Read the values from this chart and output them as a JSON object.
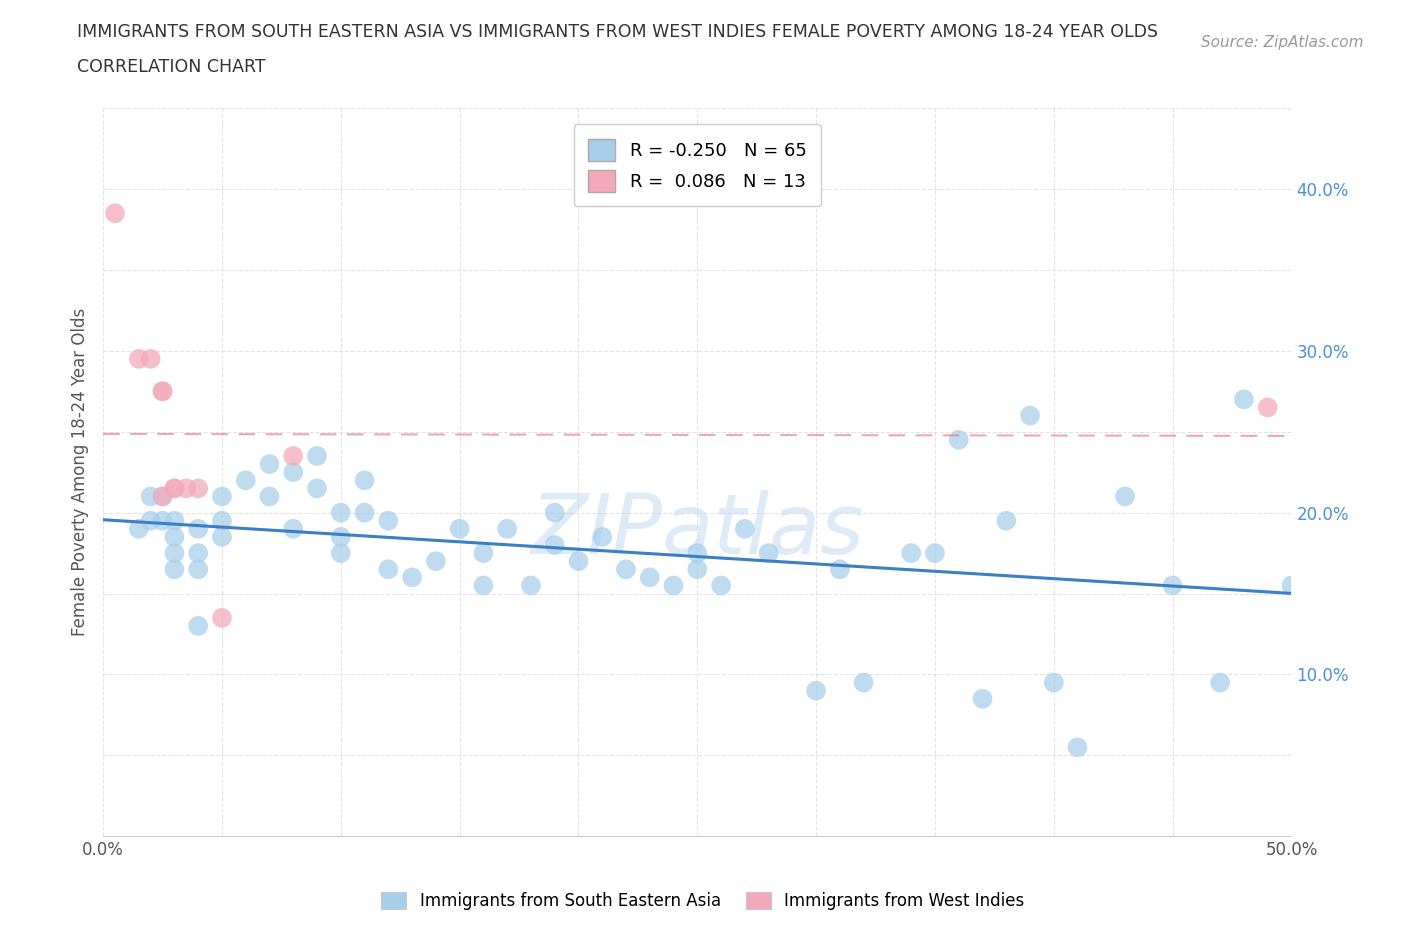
{
  "title_line1": "IMMIGRANTS FROM SOUTH EASTERN ASIA VS IMMIGRANTS FROM WEST INDIES FEMALE POVERTY AMONG 18-24 YEAR OLDS",
  "title_line2": "CORRELATION CHART",
  "source": "Source: ZipAtlas.com",
  "ylabel": "Female Poverty Among 18-24 Year Olds",
  "xlim": [
    0.0,
    0.5
  ],
  "ylim": [
    0.0,
    0.45
  ],
  "xticks": [
    0.0,
    0.05,
    0.1,
    0.15,
    0.2,
    0.25,
    0.3,
    0.35,
    0.4,
    0.45,
    0.5
  ],
  "yticks": [
    0.0,
    0.05,
    0.1,
    0.15,
    0.2,
    0.25,
    0.3,
    0.35,
    0.4,
    0.45
  ],
  "blue_R": -0.25,
  "blue_N": 65,
  "pink_R": 0.086,
  "pink_N": 13,
  "blue_color": "#A8CFEA",
  "pink_color": "#F2AABA",
  "blue_line_color": "#3B7FC4",
  "pink_line_color": "#D97080",
  "blue_scatter_x": [
    0.015,
    0.02,
    0.02,
    0.025,
    0.025,
    0.03,
    0.03,
    0.03,
    0.03,
    0.04,
    0.04,
    0.04,
    0.04,
    0.05,
    0.05,
    0.05,
    0.06,
    0.07,
    0.07,
    0.08,
    0.08,
    0.09,
    0.09,
    0.1,
    0.1,
    0.1,
    0.11,
    0.11,
    0.12,
    0.12,
    0.13,
    0.14,
    0.15,
    0.16,
    0.16,
    0.17,
    0.18,
    0.19,
    0.19,
    0.2,
    0.21,
    0.22,
    0.23,
    0.24,
    0.25,
    0.25,
    0.26,
    0.27,
    0.28,
    0.3,
    0.31,
    0.32,
    0.34,
    0.35,
    0.36,
    0.37,
    0.38,
    0.39,
    0.4,
    0.41,
    0.43,
    0.45,
    0.47,
    0.48,
    0.5
  ],
  "blue_scatter_y": [
    0.19,
    0.21,
    0.195,
    0.195,
    0.21,
    0.195,
    0.185,
    0.175,
    0.165,
    0.19,
    0.175,
    0.165,
    0.13,
    0.195,
    0.21,
    0.185,
    0.22,
    0.23,
    0.21,
    0.225,
    0.19,
    0.235,
    0.215,
    0.2,
    0.185,
    0.175,
    0.22,
    0.2,
    0.195,
    0.165,
    0.16,
    0.17,
    0.19,
    0.175,
    0.155,
    0.19,
    0.155,
    0.2,
    0.18,
    0.17,
    0.185,
    0.165,
    0.16,
    0.155,
    0.175,
    0.165,
    0.155,
    0.19,
    0.175,
    0.09,
    0.165,
    0.095,
    0.175,
    0.175,
    0.245,
    0.085,
    0.195,
    0.26,
    0.095,
    0.055,
    0.21,
    0.155,
    0.095,
    0.27,
    0.155
  ],
  "pink_scatter_x": [
    0.005,
    0.015,
    0.02,
    0.025,
    0.025,
    0.025,
    0.03,
    0.03,
    0.035,
    0.04,
    0.05,
    0.08,
    0.49
  ],
  "pink_scatter_y": [
    0.385,
    0.295,
    0.295,
    0.275,
    0.275,
    0.21,
    0.215,
    0.215,
    0.215,
    0.215,
    0.135,
    0.235,
    0.265
  ],
  "watermark_text": "ZIPatlas",
  "background_color": "#FFFFFF",
  "grid_color": "#DDDDDD",
  "yaxis_label_color": "#4B8FD5",
  "tick_label_color": "#555555"
}
